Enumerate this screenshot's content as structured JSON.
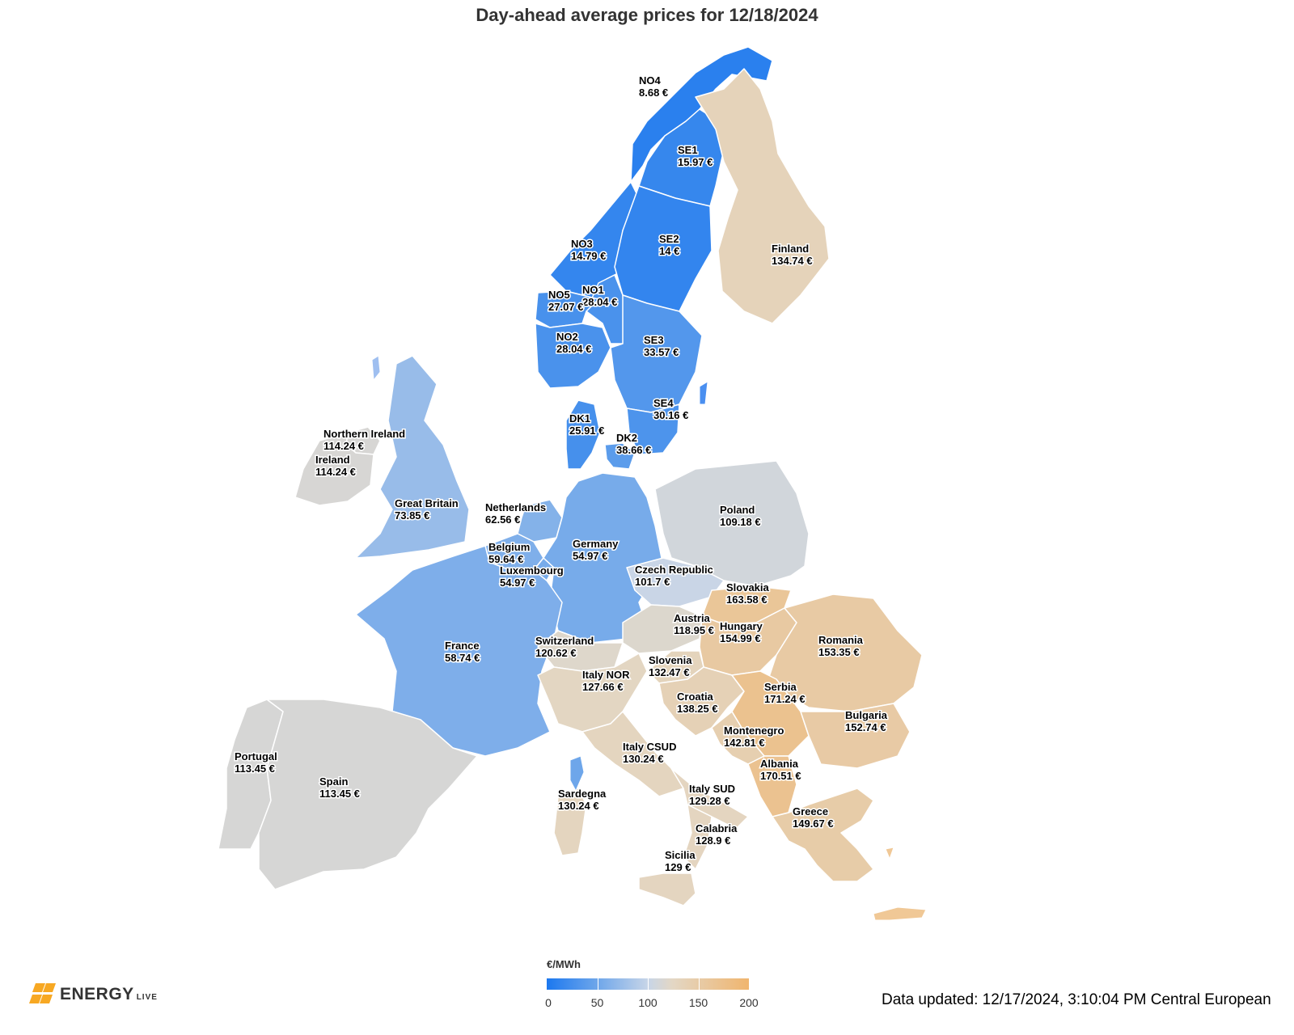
{
  "title": "Day-ahead average prices for 12/18/2024",
  "legend": {
    "unit": "€/MWh",
    "ticks": [
      "0",
      "50",
      "100",
      "150",
      "200"
    ],
    "colors": [
      "#1c78ef",
      "#6ea6ea",
      "#c7d5e8",
      "#e3d7c5",
      "#f0b56e"
    ]
  },
  "updated_text": "Data updated: 12/17/2024, 3:10:04 PM Central European",
  "logo": {
    "text": "ENERGY",
    "sub": "LIVE"
  },
  "regions": [
    {
      "name": "NO4",
      "price": "8.68 €",
      "value": 8.68
    },
    {
      "name": "SE1",
      "price": "15.97 €",
      "value": 15.97
    },
    {
      "name": "SE2",
      "price": "14 €",
      "value": 14
    },
    {
      "name": "NO3",
      "price": "14.79 €",
      "value": 14.79
    },
    {
      "name": "NO1",
      "price": "28.04 €",
      "value": 28.04
    },
    {
      "name": "NO5",
      "price": "27.07 €",
      "value": 27.07
    },
    {
      "name": "NO2",
      "price": "28.04 €",
      "value": 28.04
    },
    {
      "name": "SE3",
      "price": "33.57 €",
      "value": 33.57
    },
    {
      "name": "SE4",
      "price": "30.16 €",
      "value": 30.16
    },
    {
      "name": "DK1",
      "price": "25.91 €",
      "value": 25.91
    },
    {
      "name": "DK2",
      "price": "38.66 €",
      "value": 38.66
    },
    {
      "name": "Finland",
      "price": "134.74 €",
      "value": 134.74
    },
    {
      "name": "Northern Ireland",
      "price": "114.24 €",
      "value": 114.24
    },
    {
      "name": "Ireland",
      "price": "114.24 €",
      "value": 114.24
    },
    {
      "name": "Great Britain",
      "price": "73.85 €",
      "value": 73.85
    },
    {
      "name": "Netherlands",
      "price": "62.56 €",
      "value": 62.56
    },
    {
      "name": "Belgium",
      "price": "59.64 €",
      "value": 59.64
    },
    {
      "name": "Luxembourg",
      "price": "54.97 €",
      "value": 54.97
    },
    {
      "name": "Germany",
      "price": "54.97 €",
      "value": 54.97
    },
    {
      "name": "Poland",
      "price": "109.18 €",
      "value": 109.18
    },
    {
      "name": "Czech Republic",
      "price": "101.7 €",
      "value": 101.7
    },
    {
      "name": "Slovakia",
      "price": "163.58 €",
      "value": 163.58
    },
    {
      "name": "Austria",
      "price": "118.95 €",
      "value": 118.95
    },
    {
      "name": "Hungary",
      "price": "154.99 €",
      "value": 154.99
    },
    {
      "name": "Romania",
      "price": "153.35 €",
      "value": 153.35
    },
    {
      "name": "France",
      "price": "58.74 €",
      "value": 58.74
    },
    {
      "name": "Switzerland",
      "price": "120.62 €",
      "value": 120.62
    },
    {
      "name": "Slovenia",
      "price": "132.47 €",
      "value": 132.47
    },
    {
      "name": "Italy NOR",
      "price": "127.66 €",
      "value": 127.66
    },
    {
      "name": "Croatia",
      "price": "138.25 €",
      "value": 138.25
    },
    {
      "name": "Serbia",
      "price": "171.24 €",
      "value": 171.24
    },
    {
      "name": "Bulgaria",
      "price": "152.74 €",
      "value": 152.74
    },
    {
      "name": "Montenegro",
      "price": "142.81 €",
      "value": 142.81
    },
    {
      "name": "Italy CSUD",
      "price": "130.24 €",
      "value": 130.24
    },
    {
      "name": "Albania",
      "price": "170.51 €",
      "value": 170.51
    },
    {
      "name": "Portugal",
      "price": "113.45 €",
      "value": 113.45
    },
    {
      "name": "Spain",
      "price": "113.45 €",
      "value": 113.45
    },
    {
      "name": "Sardegna",
      "price": "130.24 €",
      "value": 130.24
    },
    {
      "name": "Italy SUD",
      "price": "129.28 €",
      "value": 129.28
    },
    {
      "name": "Greece",
      "price": "149.67 €",
      "value": 149.67
    },
    {
      "name": "Calabria",
      "price": "128.9 €",
      "value": 128.9
    },
    {
      "name": "Sicilia",
      "price": "129 €",
      "value": 129
    }
  ]
}
